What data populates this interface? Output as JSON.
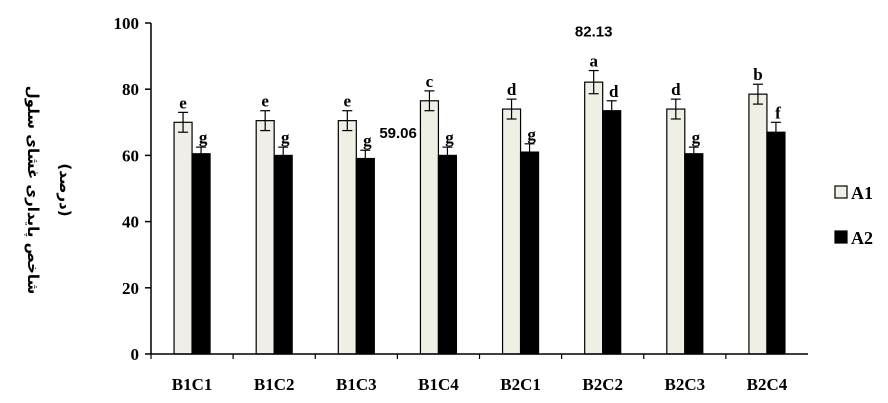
{
  "chart_data": {
    "type": "bar",
    "categories": [
      "B1C1",
      "B1C2",
      "B1C3",
      "B1C4",
      "B2C1",
      "B2C2",
      "B2C3",
      "B2C4"
    ],
    "series": [
      {
        "name": "A1",
        "color": "#efefe6",
        "values": [
          70,
          70.5,
          70.5,
          76.5,
          74,
          82.13,
          74,
          78.5
        ],
        "errors": [
          3,
          3,
          3,
          3,
          3,
          3.5,
          3,
          3
        ],
        "letters": [
          "e",
          "e",
          "e",
          "c",
          "d",
          "a",
          "d",
          "b"
        ]
      },
      {
        "name": "A2",
        "color": "#000000",
        "values": [
          60.5,
          60,
          59.06,
          60,
          61,
          73.5,
          60.5,
          67
        ],
        "errors": [
          2,
          2.5,
          2.5,
          2.5,
          2.5,
          3,
          2,
          3
        ],
        "letters": [
          "g",
          "g",
          "g",
          "g",
          "g",
          "d",
          "g",
          "f"
        ]
      }
    ],
    "ylabel": "شاخص پایداری غشای سلول",
    "ylabel_unit": "(درصد)",
    "ylim": [
      0,
      100
    ],
    "yticks": [
      0,
      20,
      40,
      60,
      80,
      100
    ],
    "grid": false,
    "legend": "right",
    "annotations": [
      {
        "category": "B1C3",
        "series": "A2",
        "text": "59.06"
      },
      {
        "category": "B2C2",
        "series": "A1",
        "text": "82.13"
      }
    ]
  }
}
